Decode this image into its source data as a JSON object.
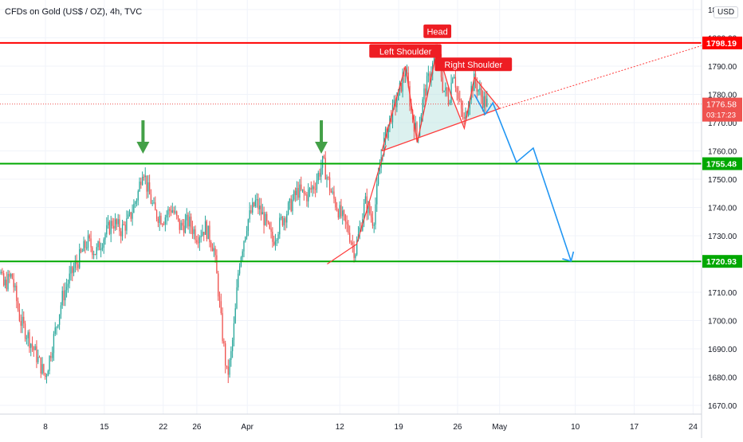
{
  "header": {
    "title": "CFDs on Gold (US$ / OZ), 4h, TVC",
    "currency": "USD"
  },
  "colors": {
    "up": "#26a69a",
    "down": "#ef5350",
    "resistance": "#ff0000",
    "support": "#00a800",
    "projection": "#2196f3",
    "pattern": "#ff3b3b",
    "pattern_fill": "#b2dfdb",
    "arrow": "#43a047"
  },
  "chart_data": {
    "type": "candlestick",
    "title": "CFDs on Gold (US$ / OZ), 4h, TVC",
    "ylim": [
      1664,
      1814
    ],
    "y_ticks": [
      1670,
      1680,
      1690,
      1700,
      1710,
      1720,
      1730,
      1740,
      1750,
      1760,
      1770,
      1780,
      1790,
      1800,
      1810
    ],
    "x_ticks": [
      "8",
      "15",
      "22",
      "26",
      "Apr",
      "12",
      "19",
      "26",
      "May",
      "10",
      "17",
      "24"
    ],
    "x_tick_day_index": [
      0,
      7,
      14,
      18,
      24,
      35,
      42,
      49,
      54,
      63,
      70,
      77
    ],
    "grid": true,
    "series_close_path": [
      {
        "d": -7.0,
        "v": 1738
      },
      {
        "d": -6.0,
        "v": 1726
      },
      {
        "d": -5.0,
        "v": 1712
      },
      {
        "d": -4.0,
        "v": 1716
      },
      {
        "d": -3.0,
        "v": 1700
      },
      {
        "d": -2.0,
        "v": 1694
      },
      {
        "d": -1.0,
        "v": 1687
      },
      {
        "d": 0.0,
        "v": 1680
      },
      {
        "d": 1.0,
        "v": 1694
      },
      {
        "d": 2.0,
        "v": 1708
      },
      {
        "d": 3.0,
        "v": 1716
      },
      {
        "d": 4.0,
        "v": 1722
      },
      {
        "d": 5.0,
        "v": 1728
      },
      {
        "d": 6.0,
        "v": 1724
      },
      {
        "d": 7.0,
        "v": 1730
      },
      {
        "d": 8.0,
        "v": 1735
      },
      {
        "d": 9.0,
        "v": 1732
      },
      {
        "d": 10.0,
        "v": 1736
      },
      {
        "d": 11.0,
        "v": 1745
      },
      {
        "d": 11.6,
        "v": 1755
      },
      {
        "d": 12.0,
        "v": 1748
      },
      {
        "d": 13.0,
        "v": 1738
      },
      {
        "d": 14.0,
        "v": 1736
      },
      {
        "d": 15.0,
        "v": 1740
      },
      {
        "d": 16.0,
        "v": 1733
      },
      {
        "d": 17.0,
        "v": 1735
      },
      {
        "d": 18.0,
        "v": 1730
      },
      {
        "d": 19.0,
        "v": 1733
      },
      {
        "d": 20.0,
        "v": 1726
      },
      {
        "d": 20.5,
        "v": 1712
      },
      {
        "d": 21.0,
        "v": 1696
      },
      {
        "d": 21.6,
        "v": 1680
      },
      {
        "d": 22.0,
        "v": 1686
      },
      {
        "d": 22.5,
        "v": 1700
      },
      {
        "d": 23.0,
        "v": 1720
      },
      {
        "d": 24.0,
        "v": 1735
      },
      {
        "d": 25.0,
        "v": 1742
      },
      {
        "d": 26.0,
        "v": 1736
      },
      {
        "d": 27.0,
        "v": 1728
      },
      {
        "d": 28.0,
        "v": 1735
      },
      {
        "d": 29.0,
        "v": 1740
      },
      {
        "d": 30.0,
        "v": 1746
      },
      {
        "d": 31.0,
        "v": 1744
      },
      {
        "d": 32.0,
        "v": 1748
      },
      {
        "d": 33.0,
        "v": 1756
      },
      {
        "d": 34.0,
        "v": 1745
      },
      {
        "d": 35.0,
        "v": 1738
      },
      {
        "d": 36.0,
        "v": 1732
      },
      {
        "d": 36.8,
        "v": 1724
      },
      {
        "d": 37.5,
        "v": 1734
      },
      {
        "d": 38.0,
        "v": 1742
      },
      {
        "d": 39.0,
        "v": 1735
      },
      {
        "d": 39.5,
        "v": 1748
      },
      {
        "d": 40.0,
        "v": 1760
      },
      {
        "d": 41.0,
        "v": 1772
      },
      {
        "d": 42.0,
        "v": 1780
      },
      {
        "d": 42.8,
        "v": 1789
      },
      {
        "d": 43.5,
        "v": 1774
      },
      {
        "d": 44.2,
        "v": 1765
      },
      {
        "d": 45.0,
        "v": 1780
      },
      {
        "d": 46.0,
        "v": 1790
      },
      {
        "d": 46.6,
        "v": 1796
      },
      {
        "d": 47.3,
        "v": 1782
      },
      {
        "d": 48.0,
        "v": 1778
      },
      {
        "d": 48.5,
        "v": 1790
      },
      {
        "d": 49.0,
        "v": 1779
      },
      {
        "d": 49.8,
        "v": 1770
      },
      {
        "d": 50.5,
        "v": 1781
      },
      {
        "d": 51.0,
        "v": 1785
      },
      {
        "d": 52.0,
        "v": 1778
      },
      {
        "d": 52.6,
        "v": 1776.58
      }
    ],
    "last_price": 1776.58,
    "countdown": "03:17:23",
    "levels": [
      {
        "name": "resistance",
        "value": 1798.19,
        "label": "1798.19"
      },
      {
        "name": "support-upper",
        "value": 1755.48,
        "label": "1755.48"
      },
      {
        "name": "support-lower",
        "value": 1720.93,
        "label": "1720.93"
      }
    ],
    "current_price_label": "1776.58",
    "annotations": [
      {
        "name": "left-shoulder",
        "text": "Left Shoulder",
        "d": 42.8,
        "v": 1789
      },
      {
        "name": "head",
        "text": "Head",
        "d": 46.6,
        "v": 1796
      },
      {
        "name": "right-shoulder",
        "text": "Right Shoulder",
        "d": 50.5,
        "v": 1786
      }
    ],
    "head_shoulders_path": [
      {
        "d": 40.0,
        "v": 1760
      },
      {
        "d": 42.8,
        "v": 1790
      },
      {
        "d": 44.2,
        "v": 1763
      },
      {
        "d": 46.6,
        "v": 1796
      },
      {
        "d": 48.2,
        "v": 1780
      },
      {
        "d": 49.8,
        "v": 1768
      },
      {
        "d": 51.0,
        "v": 1786
      },
      {
        "d": 54.0,
        "v": 1775
      }
    ],
    "neckline": {
      "from": {
        "d": 40.0,
        "v": 1760
      },
      "to": {
        "d": 54.0,
        "v": 1775
      }
    },
    "trend_extension": {
      "from": {
        "d": 54.0,
        "v": 1775
      },
      "to": {
        "d": 81.0,
        "v": 1800
      }
    },
    "projection_path": [
      {
        "d": 51.0,
        "v": 1780
      },
      {
        "d": 52.3,
        "v": 1773
      },
      {
        "d": 53.2,
        "v": 1777
      },
      {
        "d": 56.0,
        "v": 1756
      },
      {
        "d": 58.0,
        "v": 1761
      },
      {
        "d": 62.5,
        "v": 1721
      }
    ],
    "wedge_path": [
      {
        "d": 33.5,
        "v": 1720
      },
      {
        "d": 37.0,
        "v": 1727
      },
      {
        "d": 40.5,
        "v": 1762
      }
    ],
    "down_arrows": [
      {
        "name": "arrow-mar-18",
        "d": 11.6,
        "v": 1759
      },
      {
        "name": "arrow-apr-9",
        "d": 32.8,
        "v": 1759
      }
    ]
  }
}
